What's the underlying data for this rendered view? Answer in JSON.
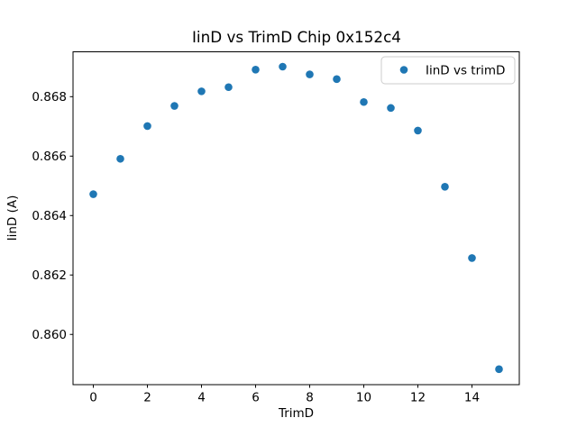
{
  "chart_data": {
    "type": "scatter",
    "title": "IinD vs TrimD Chip 0x152c4",
    "xlabel": "TrimD",
    "ylabel": "IinD (A)",
    "legend": {
      "label": "IinD vs trimD",
      "position": "upper right"
    },
    "marker_color": "#1f77b4",
    "frame_color": "#000000",
    "legend_border_color": "#cccccc",
    "background_color": "#ffffff",
    "x": [
      0,
      1,
      2,
      3,
      4,
      5,
      6,
      7,
      8,
      9,
      10,
      11,
      12,
      13,
      14,
      15
    ],
    "y": [
      0.86472,
      0.86591,
      0.86701,
      0.86769,
      0.86818,
      0.86832,
      0.86891,
      0.86901,
      0.86875,
      0.86859,
      0.86782,
      0.86762,
      0.86686,
      0.86497,
      0.86257,
      0.85883
    ],
    "xlim": [
      -0.75,
      15.75
    ],
    "ylim": [
      0.85831,
      0.86951
    ],
    "xticks": [
      0,
      2,
      4,
      6,
      8,
      10,
      12,
      14
    ],
    "xtick_labels": [
      "0",
      "2",
      "4",
      "6",
      "8",
      "10",
      "12",
      "14"
    ],
    "yticks": [
      0.86,
      0.862,
      0.864,
      0.866,
      0.868
    ],
    "ytick_labels": [
      "0.860",
      "0.862",
      "0.864",
      "0.866",
      "0.868"
    ],
    "grid": false
  }
}
